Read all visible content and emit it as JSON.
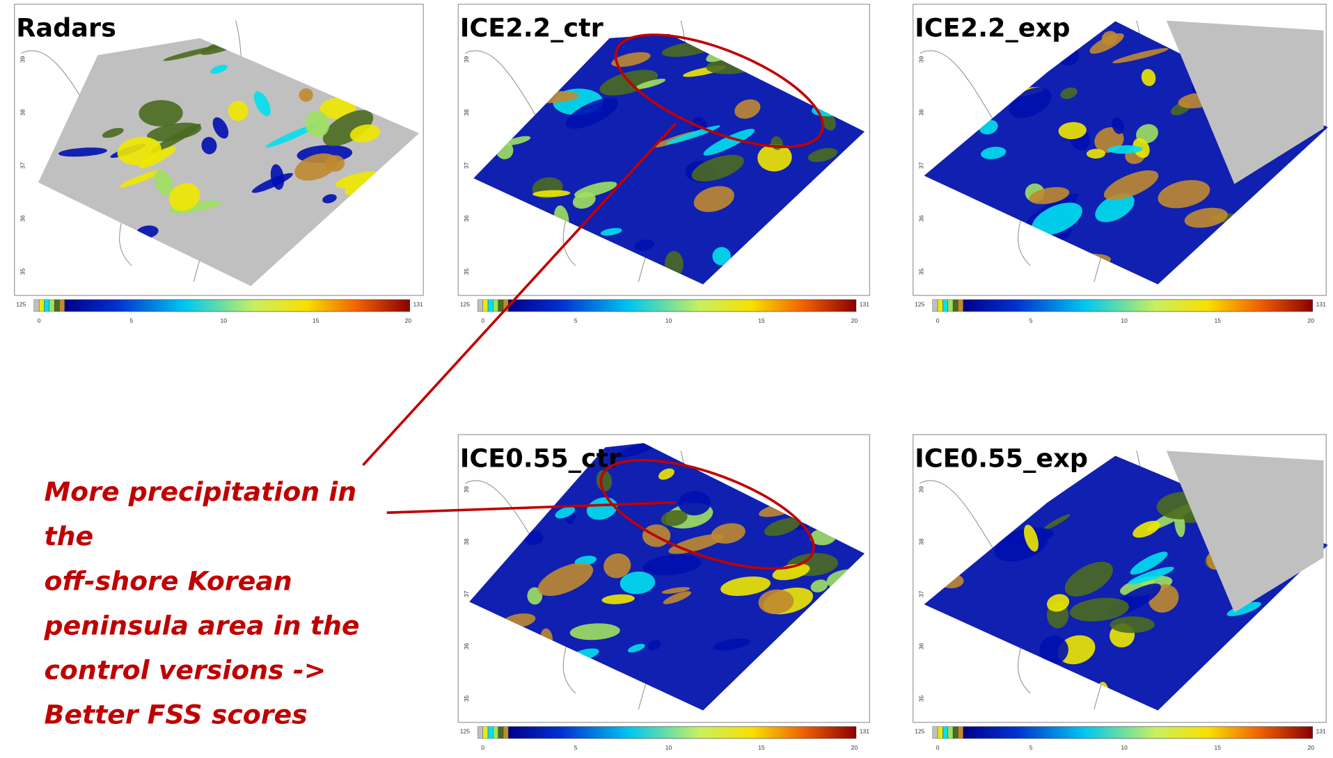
{
  "panels": [
    {
      "title": "Radars"
    },
    {
      "title": "ICE2.2_ctr"
    },
    {
      "title": "ICE2.2_exp"
    },
    {
      "title": "ICE0.55_ctr"
    },
    {
      "title": "ICE0.55_exp"
    }
  ],
  "lat_ticks": [
    35,
    36,
    37,
    38,
    39
  ],
  "colorbar": {
    "left_label": "125",
    "right_label": "131",
    "ticks": [
      0,
      5,
      10,
      15,
      20
    ]
  },
  "annotation": {
    "lines": [
      "More precipitation in",
      "the",
      "off-shore Korean",
      "peninsula area in the",
      "control versions ->",
      "Better FSS scores"
    ]
  }
}
